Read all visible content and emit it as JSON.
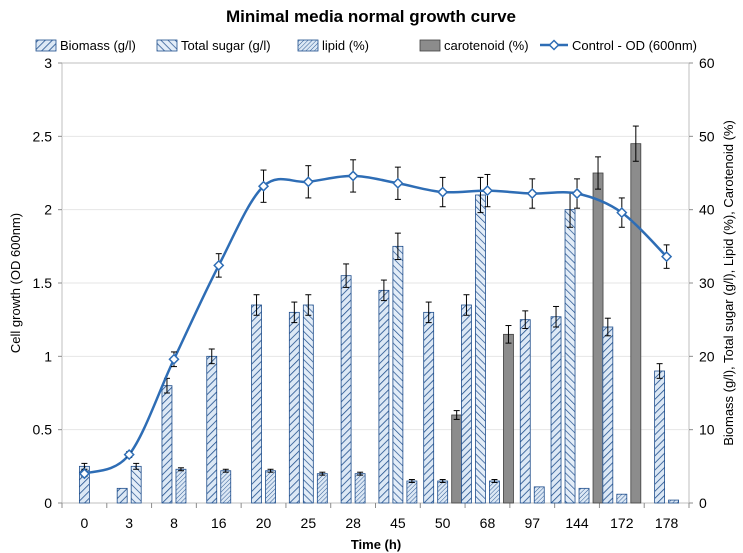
{
  "chart_data": {
    "type": "bar",
    "title": "Minimal media normal growth curve",
    "xlabel": "Time (h)",
    "ylabel": "Cell growth (OD 600nm)",
    "y2label": "Biomass (g/l), Total sugar (g/l), Lipid (%), Carotenoid (%)",
    "ylim": [
      0,
      3
    ],
    "y2lim": [
      0,
      60
    ],
    "yticks": [
      "0",
      "0.5",
      "1",
      "1.5",
      "2",
      "2.5",
      "3"
    ],
    "y2ticks": [
      "0",
      "10",
      "20",
      "30",
      "40",
      "50",
      "60"
    ],
    "categories": [
      "0",
      "3",
      "8",
      "16",
      "20",
      "25",
      "28",
      "45",
      "50",
      "68",
      "97",
      "144",
      "172",
      "178"
    ],
    "legend_position": "top",
    "series": [
      {
        "name": "Biomass (g/l)",
        "kind": "bar",
        "axis": "left",
        "values": [
          0.25,
          0.1,
          0.8,
          1.0,
          1.35,
          1.3,
          1.55,
          1.45,
          1.3,
          1.35,
          1.25,
          1.27,
          1.2,
          0.9
        ],
        "errors": [
          0.02,
          0.0,
          0.05,
          0.05,
          0.07,
          0.07,
          0.08,
          0.07,
          0.07,
          0.07,
          0.06,
          0.07,
          0.06,
          0.05
        ],
        "fill": "#dce8f5",
        "stroke": "#1f4e8c",
        "pattern": "diag-right"
      },
      {
        "name": "Total sugar (g/l)",
        "kind": "bar",
        "axis": "left",
        "values": [
          null,
          0.25,
          null,
          null,
          null,
          1.35,
          null,
          1.75,
          null,
          2.1,
          null,
          2.0,
          null,
          null
        ],
        "errors": [
          0,
          0.02,
          0,
          0,
          0,
          0.07,
          0,
          0.09,
          0,
          0.12,
          0,
          0.12,
          0,
          0
        ],
        "fill": "#e3edf8",
        "stroke": "#1f4e8c",
        "pattern": "diag-left"
      },
      {
        "name": "lipid (%)",
        "kind": "bar",
        "axis": "left",
        "values": [
          null,
          null,
          0.23,
          0.22,
          0.22,
          0.2,
          0.2,
          0.15,
          0.15,
          0.15,
          0.11,
          0.1,
          0.06,
          0.02
        ],
        "errors": [
          0,
          0,
          0.01,
          0.01,
          0.01,
          0.01,
          0.01,
          0.01,
          0.01,
          0.01,
          0.0,
          0.0,
          0.0,
          0.0
        ],
        "fill": "#dce8f5",
        "stroke": "#1f4e8c",
        "pattern": "diag-fine"
      },
      {
        "name": "carotenoid (%)",
        "kind": "bar",
        "axis": "left",
        "values": [
          null,
          null,
          null,
          null,
          null,
          null,
          null,
          null,
          0.6,
          1.15,
          null,
          2.25,
          2.45,
          null
        ],
        "errors": [
          0,
          0,
          0,
          0,
          0,
          0,
          0,
          0,
          0.03,
          0.06,
          0,
          0.11,
          0.12,
          0
        ],
        "fill": "#8c8c8c",
        "stroke": "#404040",
        "pattern": "solid"
      },
      {
        "name": "Control - OD (600nm)",
        "kind": "line",
        "axis": "left",
        "values": [
          0.2,
          0.33,
          0.98,
          1.62,
          2.16,
          2.19,
          2.23,
          2.18,
          2.12,
          2.13,
          2.11,
          2.11,
          1.98,
          1.68
        ],
        "errors": [
          0.02,
          0.02,
          0.05,
          0.08,
          0.11,
          0.11,
          0.11,
          0.11,
          0.1,
          0.11,
          0.1,
          0.1,
          0.1,
          0.08
        ],
        "color": "#2e6db5",
        "marker": "diamond"
      }
    ]
  }
}
